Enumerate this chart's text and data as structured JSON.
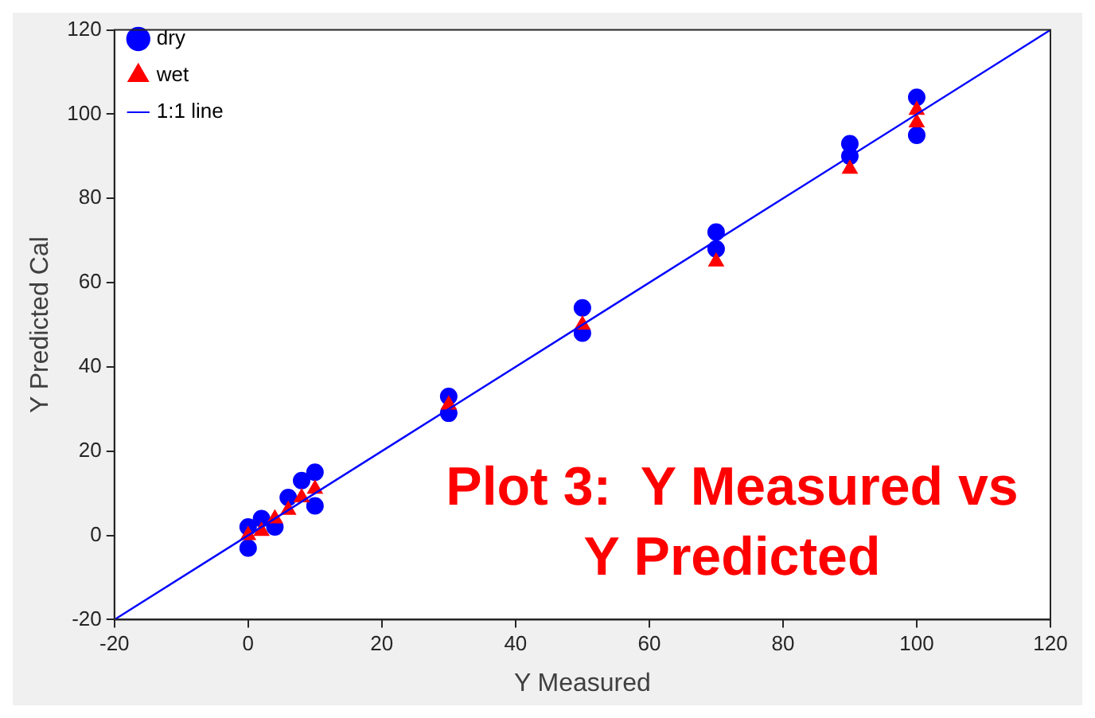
{
  "chart_data": {
    "type": "scatter",
    "xlabel": "Y Measured",
    "ylabel": "Y Predicted Cal",
    "annotations": [
      "Plot 3:  Y Measured vs Y Predicted"
    ],
    "xlim": [
      -20,
      120
    ],
    "ylim": [
      -20,
      120
    ],
    "xticks": [
      -20,
      0,
      20,
      40,
      60,
      80,
      100,
      120
    ],
    "yticks": [
      -20,
      0,
      20,
      40,
      60,
      80,
      100,
      120
    ],
    "grid": false,
    "legend": "top left",
    "series": [
      {
        "name": "dry",
        "type": "scatter",
        "marker": "circle",
        "color": "#0000ff",
        "x": [
          0,
          0,
          2,
          4,
          6,
          8,
          10,
          10,
          30,
          30,
          50,
          50,
          70,
          70,
          90,
          90,
          100,
          100
        ],
        "values": [
          -3,
          2,
          4,
          2,
          9,
          13,
          7,
          15,
          29,
          33,
          48,
          54,
          68,
          72,
          90,
          93,
          95,
          104
        ]
      },
      {
        "name": "wet",
        "type": "scatter",
        "marker": "triangle",
        "color": "#ff0000",
        "x": [
          0,
          2,
          4,
          6,
          8,
          10,
          30,
          50,
          70,
          90,
          100,
          100
        ],
        "values": [
          0,
          1,
          4,
          6,
          9,
          11,
          31,
          50,
          65,
          87,
          98,
          101
        ]
      },
      {
        "name": "1:1 line",
        "type": "line",
        "marker": "none",
        "line_style": "solid",
        "color": "#0000ff",
        "x": [
          -20,
          120
        ],
        "values": [
          -20,
          120
        ]
      }
    ]
  }
}
